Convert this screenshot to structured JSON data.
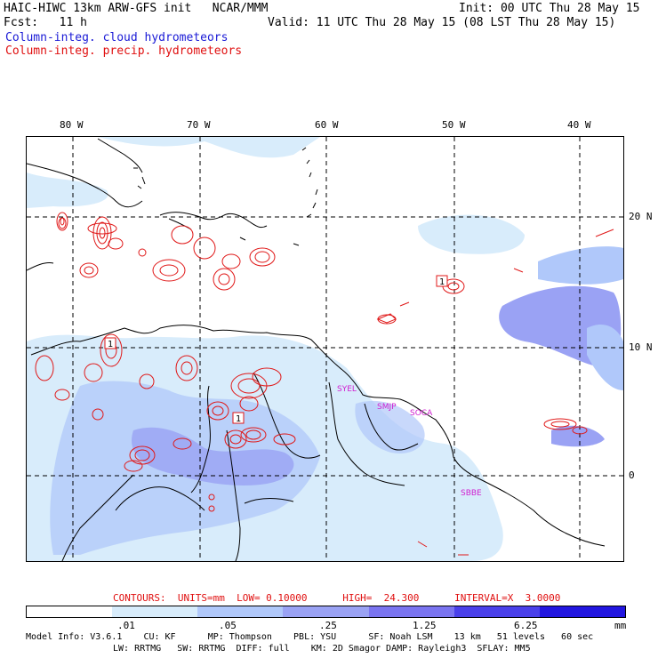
{
  "header": {
    "line1_left": "HAIC-HIWC 13km ARW-GFS init   NCAR/MMM",
    "line1_right": "Init: 00 UTC Thu 28 May 15",
    "line2_left": "Fcst:   11 h",
    "line2_right": "Valid: 11 UTC Thu 28 May 15 (08 LST Thu 28 May 15)",
    "field1": "Column-integ. cloud hydrometeors",
    "field2": "Column-integ. precip. hydrometeors"
  },
  "map": {
    "lon_labels": [
      "80 W",
      "70 W",
      "60 W",
      "50 W",
      "40 W"
    ],
    "lat_labels": [
      "20 N",
      "10 N",
      "0"
    ],
    "stations": [
      "SYEL",
      "SMJP",
      "SOCA",
      "SBBE"
    ],
    "contour_labels": [
      "1",
      "1",
      "1"
    ],
    "colors": {
      "coast": "#000000",
      "grid": "#000000",
      "precip": "#e01818",
      "station": "#d020d0"
    }
  },
  "contour_info": {
    "text": "CONTOURS:  UNITS=mm  LOW= 0.10000      HIGH=  24.300      INTERVAL=X  3.0000"
  },
  "colorbar": {
    "colors": [
      "#ffffff",
      "#d8ecfb",
      "#b0c8fa",
      "#9aa2f4",
      "#7a74f0",
      "#4a40ea",
      "#2216e0"
    ],
    "labels": [
      ".01",
      ".05",
      ".25",
      "1.25",
      "6.25"
    ],
    "units": "mm"
  },
  "footer": {
    "line1": "Model Info: V3.6.1    CU: KF      MP: Thompson    PBL: YSU      SF: Noah LSM    13 km   51 levels   60 sec",
    "line2": "LW: RRTMG   SW: RRTMG  DIFF: full    KM: 2D Smagor DAMP: Rayleigh3  SFLAY: MM5"
  }
}
